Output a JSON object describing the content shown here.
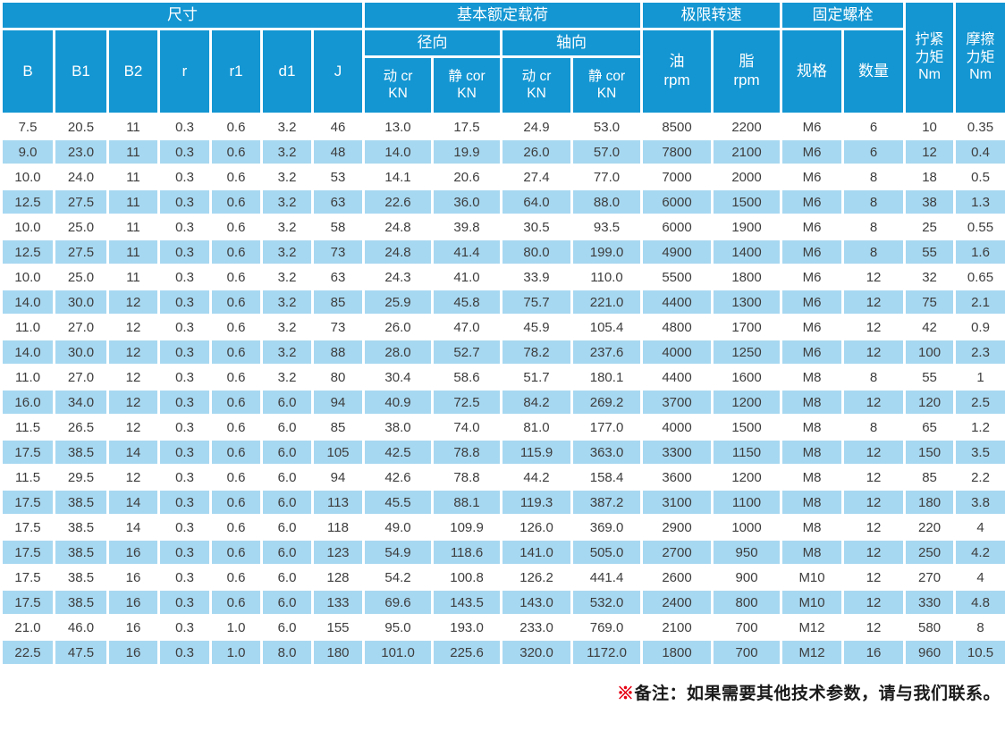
{
  "table": {
    "group_headers": {
      "dimensions": "尺寸",
      "basic_load": "基本额定载荷",
      "limit_speed": "极限转速",
      "fixing_bolt": "固定螺栓",
      "tightening_torque": "拧紧\n力矩\nNm",
      "friction_torque": "摩擦\n力矩\nNm"
    },
    "sub_headers": {
      "B": "B",
      "B1": "B1",
      "B2": "B2",
      "r": "r",
      "r1": "r1",
      "d1": "d1",
      "J": "J",
      "radial": "径向",
      "axial": "轴向",
      "oil": "油\nrpm",
      "grease": "脂\nrpm",
      "spec": "规格",
      "qty": "数量",
      "dyn_cr": "动 cr\nKN",
      "stat_cor": "静 cor\nKN"
    },
    "rows": [
      [
        "7.5",
        "20.5",
        "11",
        "0.3",
        "0.6",
        "3.2",
        "46",
        "13.0",
        "17.5",
        "24.9",
        "53.0",
        "8500",
        "2200",
        "M6",
        "6",
        "10",
        "0.35"
      ],
      [
        "9.0",
        "23.0",
        "11",
        "0.3",
        "0.6",
        "3.2",
        "48",
        "14.0",
        "19.9",
        "26.0",
        "57.0",
        "7800",
        "2100",
        "M6",
        "6",
        "12",
        "0.4"
      ],
      [
        "10.0",
        "24.0",
        "11",
        "0.3",
        "0.6",
        "3.2",
        "53",
        "14.1",
        "20.6",
        "27.4",
        "77.0",
        "7000",
        "2000",
        "M6",
        "8",
        "18",
        "0.5"
      ],
      [
        "12.5",
        "27.5",
        "11",
        "0.3",
        "0.6",
        "3.2",
        "63",
        "22.6",
        "36.0",
        "64.0",
        "88.0",
        "6000",
        "1500",
        "M6",
        "8",
        "38",
        "1.3"
      ],
      [
        "10.0",
        "25.0",
        "11",
        "0.3",
        "0.6",
        "3.2",
        "58",
        "24.8",
        "39.8",
        "30.5",
        "93.5",
        "6000",
        "1900",
        "M6",
        "8",
        "25",
        "0.55"
      ],
      [
        "12.5",
        "27.5",
        "11",
        "0.3",
        "0.6",
        "3.2",
        "73",
        "24.8",
        "41.4",
        "80.0",
        "199.0",
        "4900",
        "1400",
        "M6",
        "8",
        "55",
        "1.6"
      ],
      [
        "10.0",
        "25.0",
        "11",
        "0.3",
        "0.6",
        "3.2",
        "63",
        "24.3",
        "41.0",
        "33.9",
        "110.0",
        "5500",
        "1800",
        "M6",
        "12",
        "32",
        "0.65"
      ],
      [
        "14.0",
        "30.0",
        "12",
        "0.3",
        "0.6",
        "3.2",
        "85",
        "25.9",
        "45.8",
        "75.7",
        "221.0",
        "4400",
        "1300",
        "M6",
        "12",
        "75",
        "2.1"
      ],
      [
        "11.0",
        "27.0",
        "12",
        "0.3",
        "0.6",
        "3.2",
        "73",
        "26.0",
        "47.0",
        "45.9",
        "105.4",
        "4800",
        "1700",
        "M6",
        "12",
        "42",
        "0.9"
      ],
      [
        "14.0",
        "30.0",
        "12",
        "0.3",
        "0.6",
        "3.2",
        "88",
        "28.0",
        "52.7",
        "78.2",
        "237.6",
        "4000",
        "1250",
        "M6",
        "12",
        "100",
        "2.3"
      ],
      [
        "11.0",
        "27.0",
        "12",
        "0.3",
        "0.6",
        "3.2",
        "80",
        "30.4",
        "58.6",
        "51.7",
        "180.1",
        "4400",
        "1600",
        "M8",
        "8",
        "55",
        "1"
      ],
      [
        "16.0",
        "34.0",
        "12",
        "0.3",
        "0.6",
        "6.0",
        "94",
        "40.9",
        "72.5",
        "84.2",
        "269.2",
        "3700",
        "1200",
        "M8",
        "12",
        "120",
        "2.5"
      ],
      [
        "11.5",
        "26.5",
        "12",
        "0.3",
        "0.6",
        "6.0",
        "85",
        "38.0",
        "74.0",
        "81.0",
        "177.0",
        "4000",
        "1500",
        "M8",
        "8",
        "65",
        "1.2"
      ],
      [
        "17.5",
        "38.5",
        "14",
        "0.3",
        "0.6",
        "6.0",
        "105",
        "42.5",
        "78.8",
        "115.9",
        "363.0",
        "3300",
        "1150",
        "M8",
        "12",
        "150",
        "3.5"
      ],
      [
        "11.5",
        "29.5",
        "12",
        "0.3",
        "0.6",
        "6.0",
        "94",
        "42.6",
        "78.8",
        "44.2",
        "158.4",
        "3600",
        "1200",
        "M8",
        "12",
        "85",
        "2.2"
      ],
      [
        "17.5",
        "38.5",
        "14",
        "0.3",
        "0.6",
        "6.0",
        "113",
        "45.5",
        "88.1",
        "119.3",
        "387.2",
        "3100",
        "1100",
        "M8",
        "12",
        "180",
        "3.8"
      ],
      [
        "17.5",
        "38.5",
        "14",
        "0.3",
        "0.6",
        "6.0",
        "118",
        "49.0",
        "109.9",
        "126.0",
        "369.0",
        "2900",
        "1000",
        "M8",
        "12",
        "220",
        "4"
      ],
      [
        "17.5",
        "38.5",
        "16",
        "0.3",
        "0.6",
        "6.0",
        "123",
        "54.9",
        "118.6",
        "141.0",
        "505.0",
        "2700",
        "950",
        "M8",
        "12",
        "250",
        "4.2"
      ],
      [
        "17.5",
        "38.5",
        "16",
        "0.3",
        "0.6",
        "6.0",
        "128",
        "54.2",
        "100.8",
        "126.2",
        "441.4",
        "2600",
        "900",
        "M10",
        "12",
        "270",
        "4"
      ],
      [
        "17.5",
        "38.5",
        "16",
        "0.3",
        "0.6",
        "6.0",
        "133",
        "69.6",
        "143.5",
        "143.0",
        "532.0",
        "2400",
        "800",
        "M10",
        "12",
        "330",
        "4.8"
      ],
      [
        "21.0",
        "46.0",
        "16",
        "0.3",
        "1.0",
        "6.0",
        "155",
        "95.0",
        "193.0",
        "233.0",
        "769.0",
        "2100",
        "700",
        "M12",
        "12",
        "580",
        "8"
      ],
      [
        "22.5",
        "47.5",
        "16",
        "0.3",
        "1.0",
        "8.0",
        "180",
        "101.0",
        "225.6",
        "320.0",
        "1172.0",
        "1800",
        "700",
        "M12",
        "16",
        "960",
        "10.5"
      ]
    ]
  },
  "footer": {
    "marker": "※",
    "note": "备注：如果需要其他技术参数，请与我们联系。"
  },
  "colors": {
    "header_bg": "#1496d2",
    "row_alt_bg": "#a7d8f1",
    "row_bg": "#ffffff",
    "note_marker_color": "#e60012",
    "data_text": "#3d3d3d"
  }
}
